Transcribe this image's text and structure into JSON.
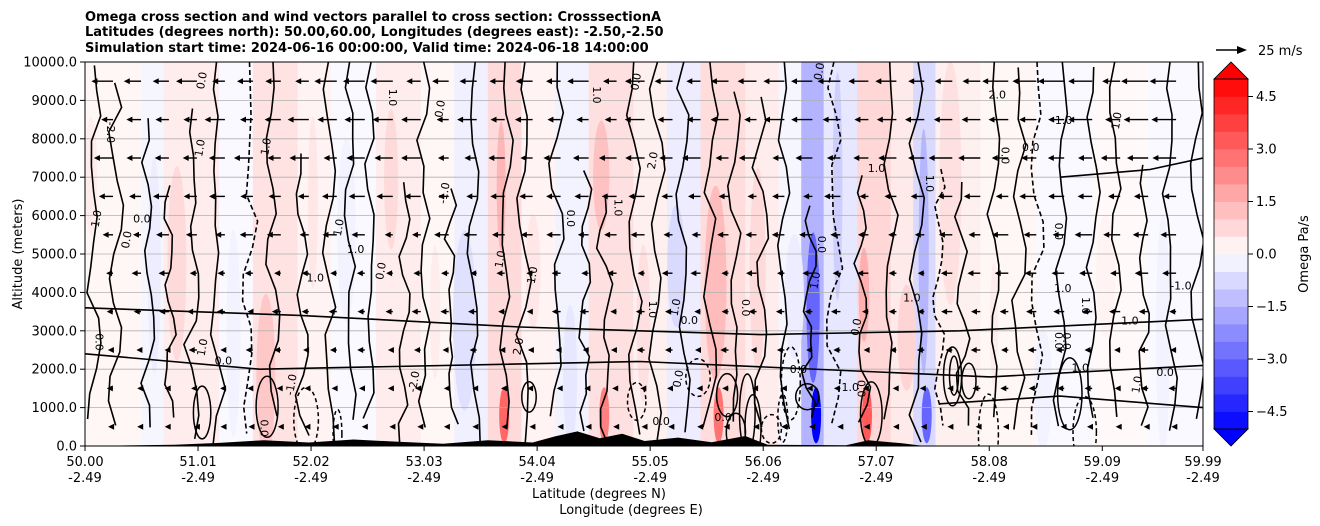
{
  "chart_data": {
    "type": "contour",
    "title_lines": [
      "Omega cross section and wind vectors parallel to cross section: CrosssectionA",
      "Latitudes (degrees north): 50.00,60.00, Longitudes (degrees east): -2.50,-2.50",
      "Simulation start time: 2024-06-16 00:00:00, Valid time: 2024-06-18 14:00:00"
    ],
    "ylabel": "Altitude (meters)",
    "xlabel_lat": "Latitude (degrees N)",
    "xlabel_lon": "Longitude (degrees E)",
    "ylim": [
      0,
      10000
    ],
    "y_ticks": [
      "0.0",
      "1000.0",
      "2000.0",
      "3000.0",
      "4000.0",
      "5000.0",
      "6000.0",
      "7000.0",
      "8000.0",
      "9000.0",
      "10000.0"
    ],
    "x_ticks": [
      {
        "lat": "50.00",
        "lon": "-2.49"
      },
      {
        "lat": "51.01",
        "lon": "-2.49"
      },
      {
        "lat": "52.02",
        "lon": "-2.49"
      },
      {
        "lat": "53.03",
        "lon": "-2.49"
      },
      {
        "lat": "54.04",
        "lon": "-2.49"
      },
      {
        "lat": "55.05",
        "lon": "-2.49"
      },
      {
        "lat": "56.06",
        "lon": "-2.49"
      },
      {
        "lat": "57.07",
        "lon": "-2.49"
      },
      {
        "lat": "58.08",
        "lon": "-2.49"
      },
      {
        "lat": "59.09",
        "lon": "-2.49"
      },
      {
        "lat": "59.99",
        "lon": "-2.49"
      }
    ],
    "colorbar": {
      "label": "Omega Pa/s",
      "min": -5.0,
      "max": 5.0,
      "step": 0.5,
      "ticks": [
        "-4.5",
        "-3.0",
        "-1.5",
        "0.0",
        "1.5",
        "3.0",
        "4.5"
      ],
      "negative_color": "#0000ff",
      "positive_color": "#ff0000",
      "neutral_color": "#ffffff"
    },
    "quiver_key": {
      "label": "25 m/s",
      "speed_ms": 25
    },
    "contour_labels": [
      "0.0",
      "1.0",
      "-1.0",
      "2.0",
      "-2.0"
    ],
    "omega_bands": [
      {
        "lat": 50.0,
        "omega": 0.3
      },
      {
        "lat": 50.5,
        "omega": -0.3
      },
      {
        "lat": 50.7,
        "omega": 0.6
      },
      {
        "lat": 51.2,
        "omega": -0.2
      },
      {
        "lat": 51.5,
        "omega": 0.9
      },
      {
        "lat": 51.9,
        "omega": 0.4
      },
      {
        "lat": 52.2,
        "omega": -0.2
      },
      {
        "lat": 52.6,
        "omega": 0.6
      },
      {
        "lat": 53.0,
        "omega": 0.3
      },
      {
        "lat": 53.3,
        "omega": -0.5
      },
      {
        "lat": 53.6,
        "omega": 1.2
      },
      {
        "lat": 53.9,
        "omega": 0.4
      },
      {
        "lat": 54.2,
        "omega": -0.4
      },
      {
        "lat": 54.5,
        "omega": 1.0
      },
      {
        "lat": 54.9,
        "omega": 0.5
      },
      {
        "lat": 55.2,
        "omega": -0.6
      },
      {
        "lat": 55.5,
        "omega": 1.1
      },
      {
        "lat": 55.9,
        "omega": 0.6
      },
      {
        "lat": 56.2,
        "omega": -0.3
      },
      {
        "lat": 56.4,
        "omega": -2.5
      },
      {
        "lat": 56.6,
        "omega": -0.8
      },
      {
        "lat": 56.9,
        "omega": 1.3
      },
      {
        "lat": 57.2,
        "omega": 0.7
      },
      {
        "lat": 57.4,
        "omega": -1.2
      },
      {
        "lat": 57.6,
        "omega": 0.5
      },
      {
        "lat": 58.0,
        "omega": 0.3
      },
      {
        "lat": 58.5,
        "omega": -0.2
      },
      {
        "lat": 59.0,
        "omega": 0.2
      },
      {
        "lat": 59.5,
        "omega": -0.2
      },
      {
        "lat": 59.99,
        "omega": -0.1
      }
    ],
    "wind_u_ms_by_altitude": [
      {
        "alt": 500,
        "u": -3
      },
      {
        "alt": 1500,
        "u": -4
      },
      {
        "alt": 2500,
        "u": -5
      },
      {
        "alt": 3500,
        "u": -6
      },
      {
        "alt": 4500,
        "u": -7
      },
      {
        "alt": 5500,
        "u": -9
      },
      {
        "alt": 6500,
        "u": -10
      },
      {
        "alt": 7500,
        "u": -12
      },
      {
        "alt": 8500,
        "u": -13
      },
      {
        "alt": 9500,
        "u": -14
      }
    ],
    "terrain_m": [
      {
        "lat": 50.0,
        "h": 0
      },
      {
        "lat": 50.8,
        "h": 30
      },
      {
        "lat": 51.2,
        "h": 80
      },
      {
        "lat": 51.6,
        "h": 150
      },
      {
        "lat": 52.0,
        "h": 90
      },
      {
        "lat": 52.4,
        "h": 170
      },
      {
        "lat": 52.8,
        "h": 110
      },
      {
        "lat": 53.2,
        "h": 60
      },
      {
        "lat": 53.6,
        "h": 150
      },
      {
        "lat": 54.0,
        "h": 90
      },
      {
        "lat": 54.2,
        "h": 250
      },
      {
        "lat": 54.4,
        "h": 380
      },
      {
        "lat": 54.6,
        "h": 200
      },
      {
        "lat": 54.8,
        "h": 320
      },
      {
        "lat": 55.0,
        "h": 130
      },
      {
        "lat": 55.3,
        "h": 220
      },
      {
        "lat": 55.6,
        "h": 100
      },
      {
        "lat": 55.9,
        "h": 260
      },
      {
        "lat": 56.1,
        "h": 30
      },
      {
        "lat": 56.8,
        "h": 20
      },
      {
        "lat": 57.0,
        "h": 150
      },
      {
        "lat": 57.3,
        "h": 70
      },
      {
        "lat": 57.5,
        "h": 0
      },
      {
        "lat": 59.99,
        "h": 0
      }
    ]
  }
}
